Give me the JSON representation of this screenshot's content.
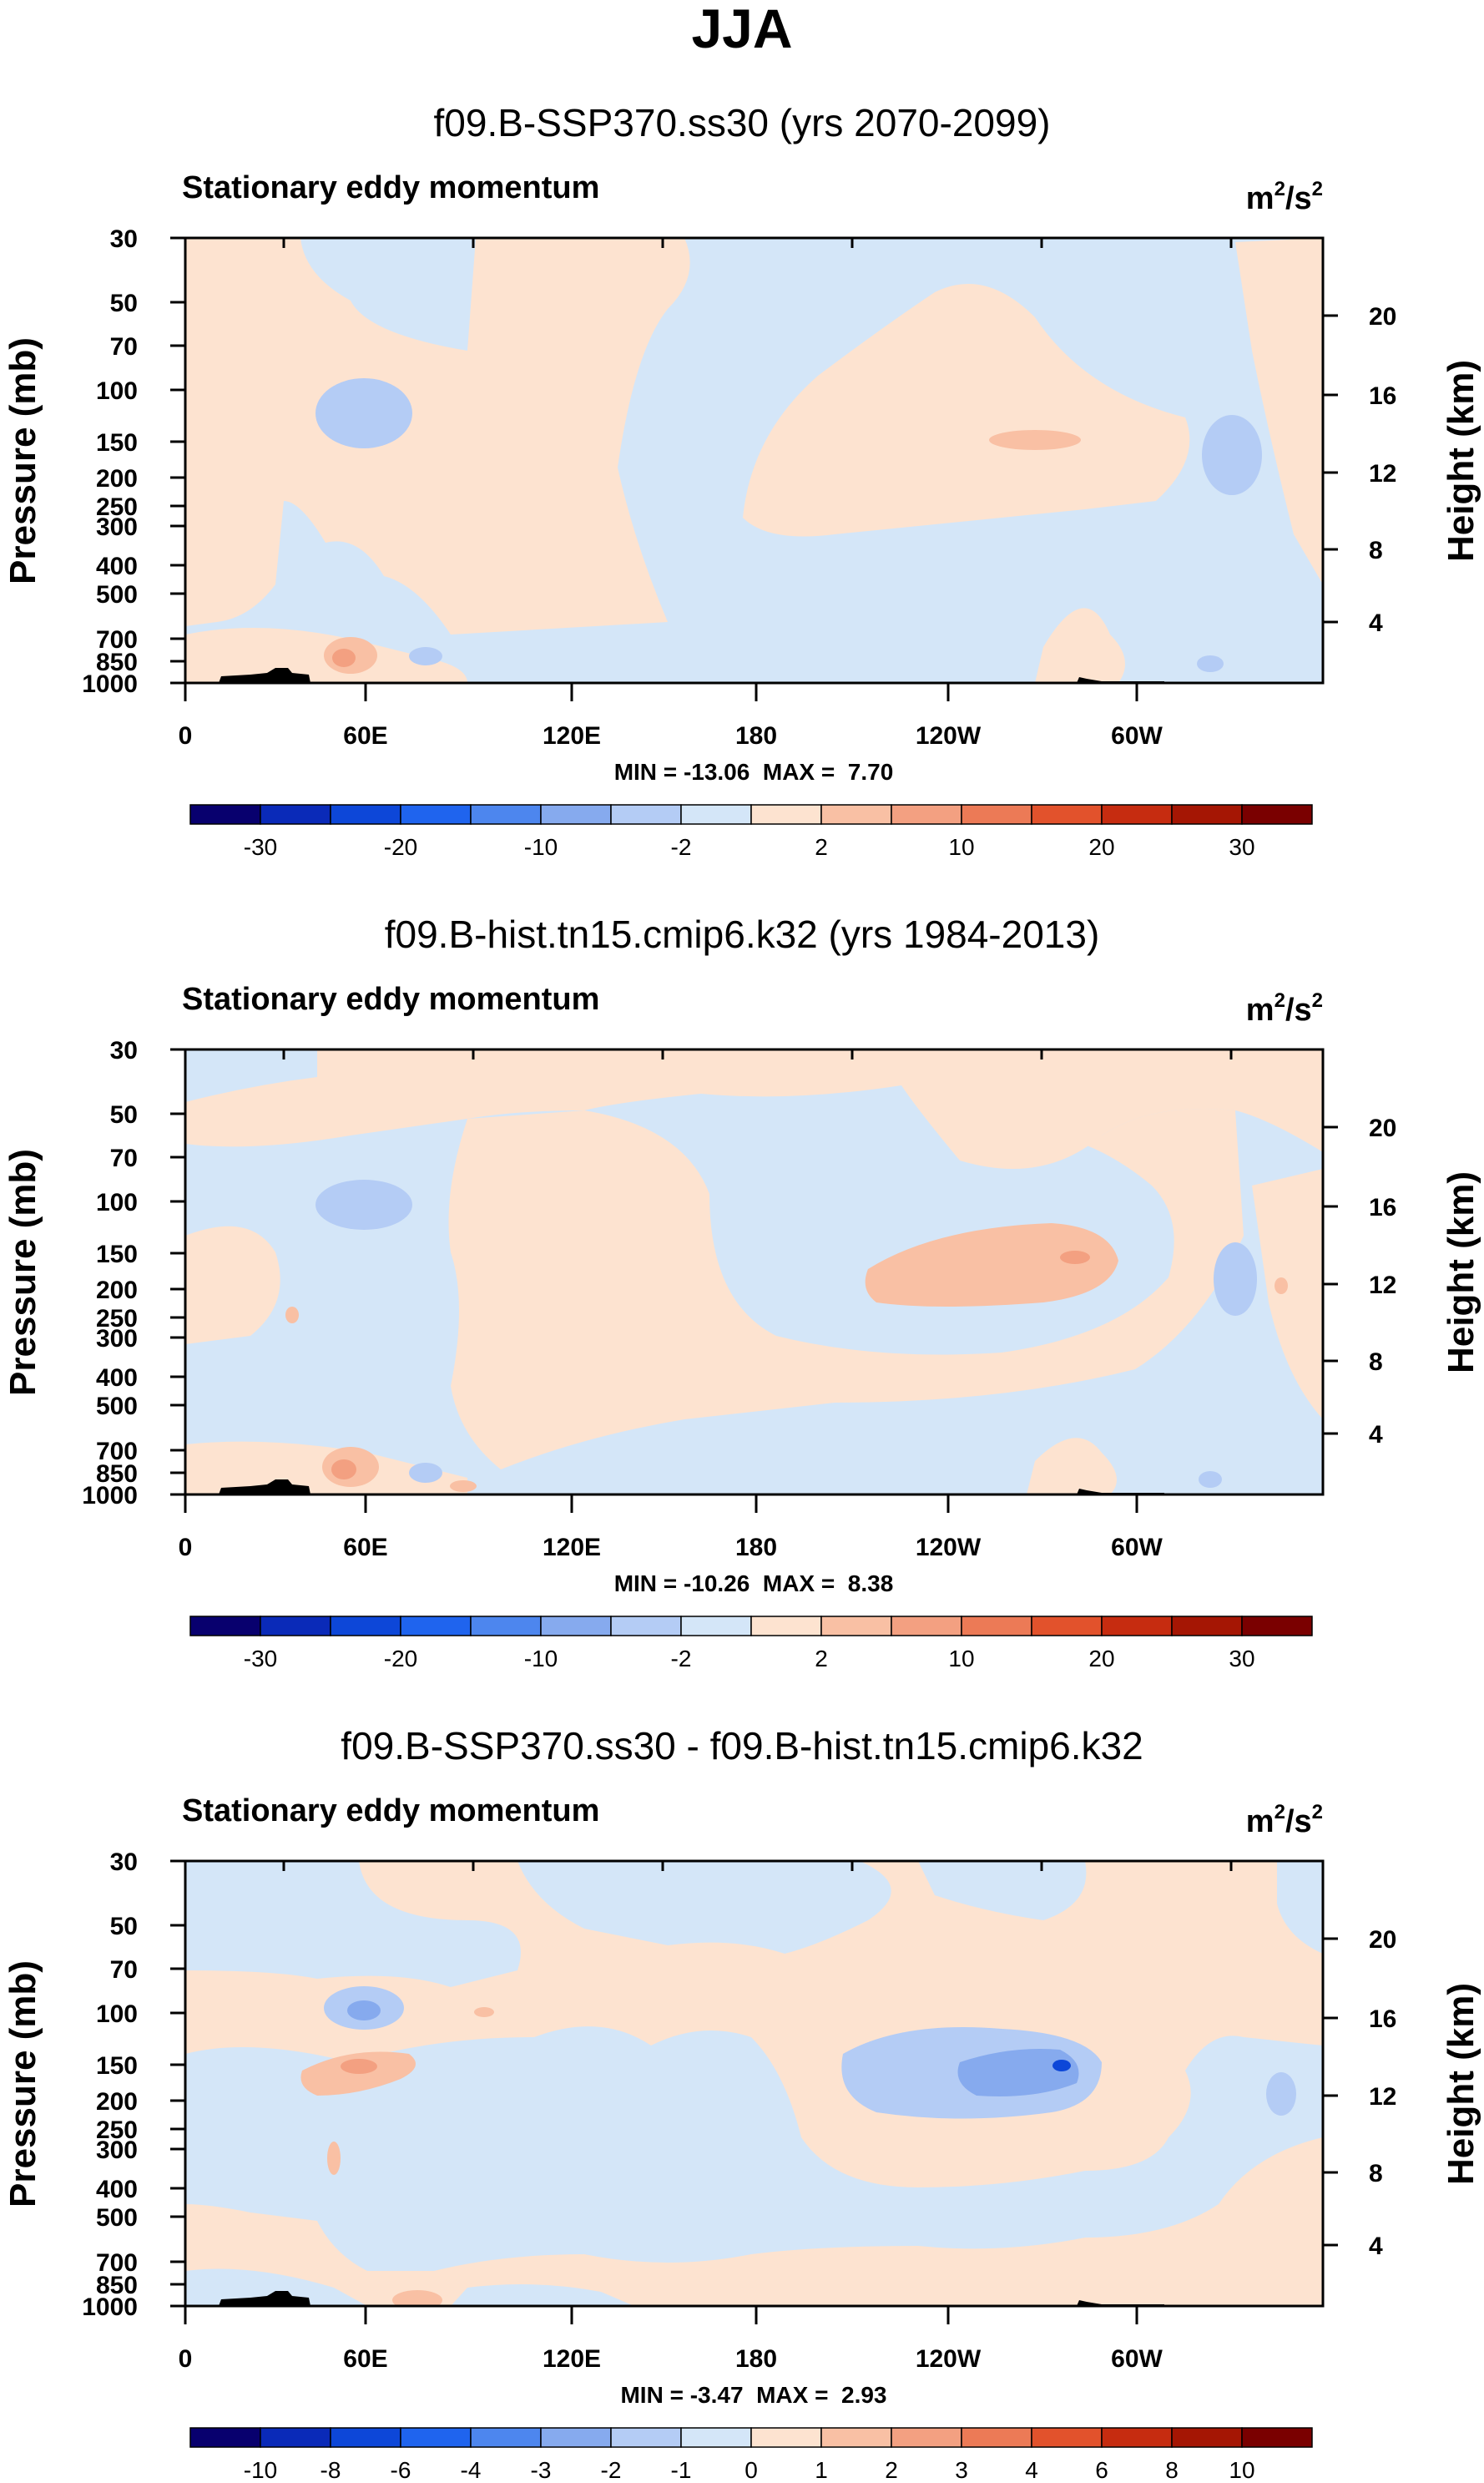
{
  "figure_title": "JJA",
  "chart_data": [
    {
      "type": "heatmap",
      "title": "f09.B-SSP370.ss30 (yrs 2070-2099)",
      "subtitle": "Stationary eddy momentum",
      "units_base": "m",
      "units_exp": "2",
      "units_denom": "/s",
      "units_denom_exp": "2",
      "ylabel": "Pressure (mb)",
      "y2label": "Height (km)",
      "yticks": [
        "30",
        "50",
        "70",
        "100",
        "150",
        "200",
        "250",
        "300",
        "400",
        "500",
        "700",
        "850",
        "1000"
      ],
      "y2ticks": [
        "20",
        "16",
        "12",
        "8",
        "4"
      ],
      "xticks": [
        "0",
        "60E",
        "120E",
        "180",
        "120W",
        "60W"
      ],
      "minmax": "MIN = -13.06  MAX =  7.70",
      "colorbar_labels": [
        "-30",
        "-20",
        "-10",
        "-2",
        "2",
        "10",
        "20",
        "30"
      ]
    },
    {
      "type": "heatmap",
      "title": "f09.B-hist.tn15.cmip6.k32 (yrs 1984-2013)",
      "subtitle": "Stationary eddy momentum",
      "units_base": "m",
      "units_exp": "2",
      "units_denom": "/s",
      "units_denom_exp": "2",
      "ylabel": "Pressure (mb)",
      "y2label": "Height (km)",
      "yticks": [
        "30",
        "50",
        "70",
        "100",
        "150",
        "200",
        "250",
        "300",
        "400",
        "500",
        "700",
        "850",
        "1000"
      ],
      "y2ticks": [
        "20",
        "16",
        "12",
        "8",
        "4"
      ],
      "xticks": [
        "0",
        "60E",
        "120E",
        "180",
        "120W",
        "60W"
      ],
      "minmax": "MIN = -10.26  MAX =  8.38",
      "colorbar_labels": [
        "-30",
        "-20",
        "-10",
        "-2",
        "2",
        "10",
        "20",
        "30"
      ]
    },
    {
      "type": "heatmap",
      "title": "f09.B-SSP370.ss30 - f09.B-hist.tn15.cmip6.k32",
      "subtitle": "Stationary eddy momentum",
      "units_base": "m",
      "units_exp": "2",
      "units_denom": "/s",
      "units_denom_exp": "2",
      "ylabel": "Pressure (mb)",
      "y2label": "Height (km)",
      "yticks": [
        "30",
        "50",
        "70",
        "100",
        "150",
        "200",
        "250",
        "300",
        "400",
        "500",
        "700",
        "850",
        "1000"
      ],
      "y2ticks": [
        "20",
        "16",
        "12",
        "8",
        "4"
      ],
      "xticks": [
        "0",
        "60E",
        "120E",
        "180",
        "120W",
        "60W"
      ],
      "minmax": "MIN = -3.47  MAX =  2.93",
      "colorbar_labels": [
        "-10",
        "-8",
        "-6",
        "-4",
        "-3",
        "-2",
        "-1",
        "0",
        "1",
        "2",
        "3",
        "4",
        "6",
        "8",
        "10"
      ]
    }
  ],
  "colors": {
    "light_blue": "#d4e6f8",
    "light_peach": "#fde3d0",
    "colorbar": [
      "#08006e",
      "#0a2ab8",
      "#0d47d8",
      "#1f64ee",
      "#4d86ee",
      "#86aaee",
      "#b4ccf5",
      "#d4e6f8",
      "#fde3d0",
      "#f9c0a4",
      "#f3a081",
      "#ec7a56",
      "#e2522c",
      "#c62c10",
      "#a51604",
      "#7a0000"
    ]
  }
}
